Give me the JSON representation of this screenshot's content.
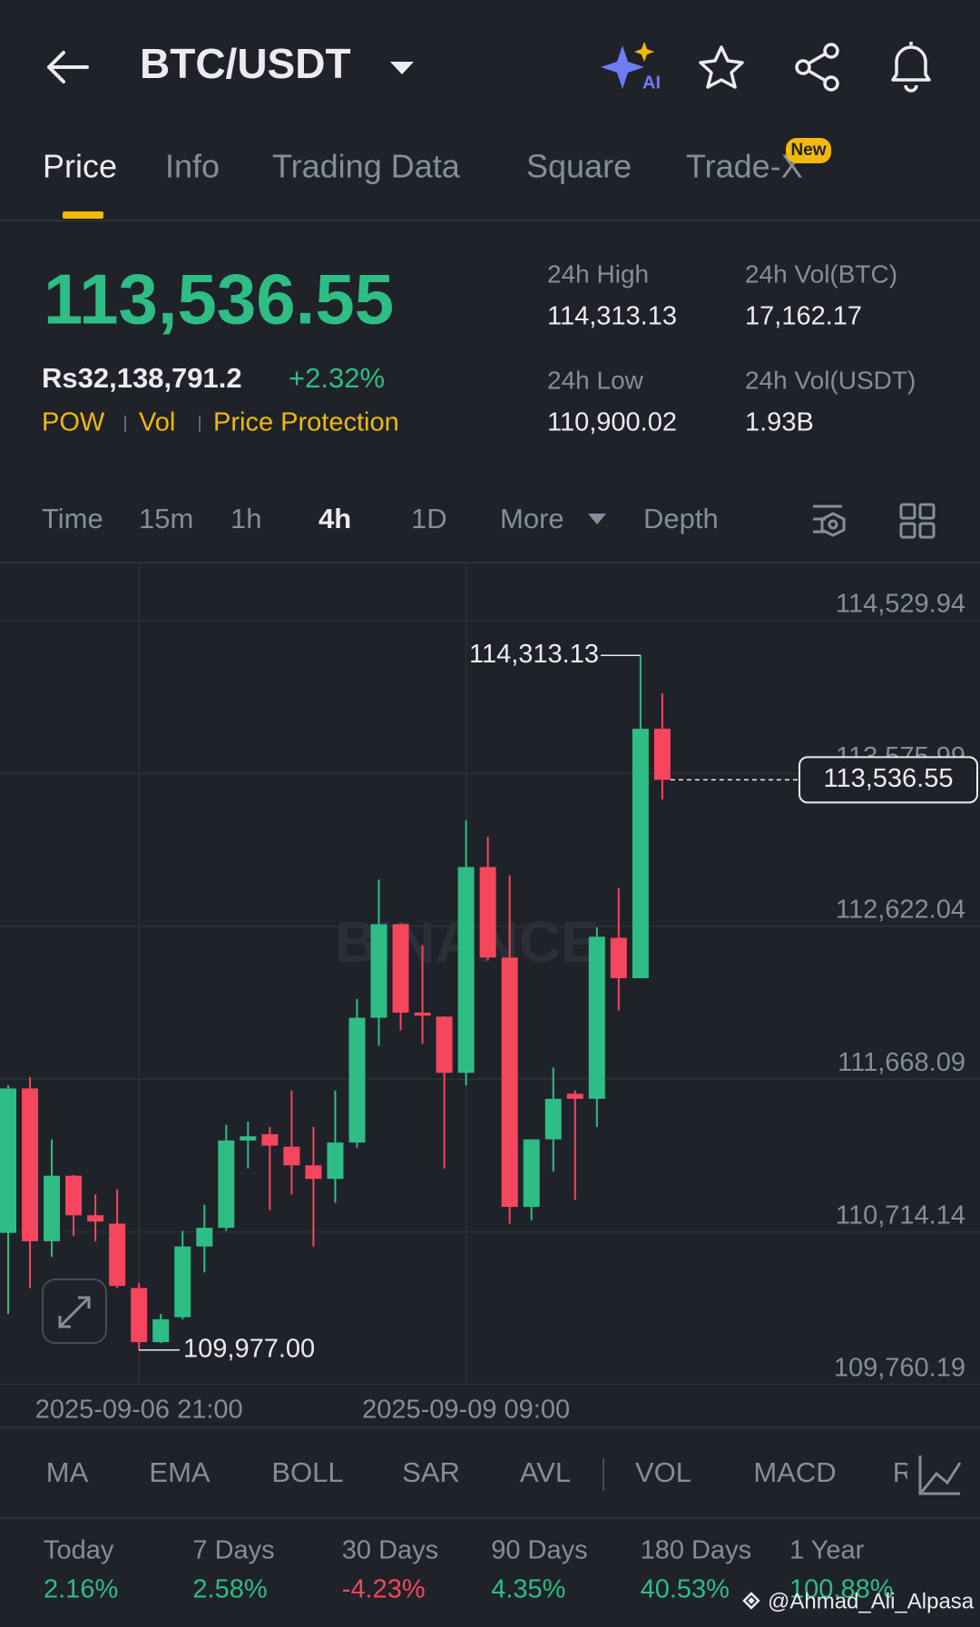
{
  "header": {
    "title": "BTC/USDT",
    "ai_badge": "AI"
  },
  "tabs": {
    "items": [
      "Price",
      "Info",
      "Trading Data",
      "Square",
      "Trade-X"
    ],
    "new_badge": "New"
  },
  "ticker": {
    "last_price": "113,536.55",
    "local_price": "Rs32,138,791.2",
    "change": "+2.32%",
    "tags": [
      "POW",
      "Vol",
      "Price Protection"
    ],
    "stats": [
      {
        "label": "24h High",
        "value": "114,313.13"
      },
      {
        "label": "24h Vol(BTC)",
        "value": "17,162.17"
      },
      {
        "label": "24h Low",
        "value": "110,900.02"
      },
      {
        "label": "24h Vol(USDT)",
        "value": "1.93B"
      }
    ]
  },
  "timeframes": {
    "items": [
      "Time",
      "15m",
      "1h",
      "4h",
      "1D",
      "More",
      "Depth"
    ],
    "selected": "4h"
  },
  "chart_data": {
    "type": "candlestick",
    "categories": [
      null,
      null,
      null,
      null,
      null,
      null,
      "2025-09-06 21:00",
      null,
      null,
      null,
      null,
      null,
      null,
      null,
      null,
      null,
      null,
      null,
      null,
      null,
      null,
      "2025-09-09 09:00",
      null,
      null,
      null,
      null,
      null,
      null,
      null,
      null,
      null
    ],
    "open": [
      110708,
      111610,
      110656,
      111065,
      110818,
      110766,
      110364,
      110026,
      110182,
      110623,
      110740,
      111285,
      111324,
      111246,
      111130,
      111045,
      111272,
      112051,
      112635,
      112083,
      112058,
      111707,
      112992,
      112427,
      110870,
      111292,
      111577,
      111545,
      112550,
      112298,
      113855
    ],
    "high": [
      111629,
      111681,
      111292,
      111070,
      110948,
      110980,
      110396,
      110202,
      110721,
      110883,
      111383,
      111402,
      111370,
      111597,
      111370,
      111597,
      112168,
      112914,
      112640,
      112505,
      112060,
      113284,
      113180,
      112940,
      111292,
      111740,
      111597,
      112616,
      112862,
      114313.13,
      114076
    ],
    "low": [
      110202,
      110364,
      110558,
      110688,
      110656,
      110364,
      109977,
      110020,
      110169,
      110461,
      110721,
      111110,
      110850,
      110948,
      110623,
      110896,
      111240,
      111876,
      111973,
      111889,
      111110,
      111629,
      112408,
      110766,
      110786,
      111091,
      110915,
      111370,
      112096,
      112298,
      113414
    ],
    "close": [
      111610,
      110656,
      111065,
      110818,
      110779,
      110377,
      110026,
      110169,
      110623,
      110740,
      111285,
      111311,
      111253,
      111130,
      111045,
      111272,
      112051,
      112635,
      112083,
      112064,
      111707,
      112992,
      112427,
      110870,
      111292,
      111545,
      111545,
      112557,
      112298,
      113855,
      113536.55
    ],
    "up_color": "#2ebd85",
    "down_color": "#f6465d",
    "ylim": [
      109760.19,
      114886.86
    ],
    "yticks": [
      {
        "value": 114529.94,
        "label": "114,529.94"
      },
      {
        "value": 113575.99,
        "label": "113,575.99"
      },
      {
        "value": 112622.04,
        "label": "112,622.04"
      },
      {
        "value": 111668.09,
        "label": "111,668.09"
      },
      {
        "value": 110714.14,
        "label": "110,714.14"
      },
      {
        "value": 109760.19,
        "label": "109,760.19"
      }
    ],
    "grid": true,
    "high_marker": {
      "value": 114313.13,
      "label": "114,313.13"
    },
    "low_marker": {
      "value": 109977,
      "label": "109,977.00"
    },
    "price_line": {
      "value": 113536.55,
      "label": "113,536.55"
    },
    "watermark": "BINANCE"
  },
  "indicators": [
    "MA",
    "EMA",
    "BOLL",
    "SAR",
    "AVL",
    "VOL",
    "MACD",
    "R"
  ],
  "performance": [
    {
      "label": "Today",
      "value": "2.16%",
      "color": "#2ebd85"
    },
    {
      "label": "7 Days",
      "value": "2.58%",
      "color": "#2ebd85"
    },
    {
      "label": "30 Days",
      "value": "-4.23%",
      "color": "#f6465d"
    },
    {
      "label": "90 Days",
      "value": "4.35%",
      "color": "#2ebd85"
    },
    {
      "label": "180 Days",
      "value": "40.53%",
      "color": "#2ebd85"
    },
    {
      "label": "1 Year",
      "value": "100.88%",
      "color": "#2ebd85"
    }
  ],
  "watermark": "@Ahmad_Ali_Alpasa"
}
